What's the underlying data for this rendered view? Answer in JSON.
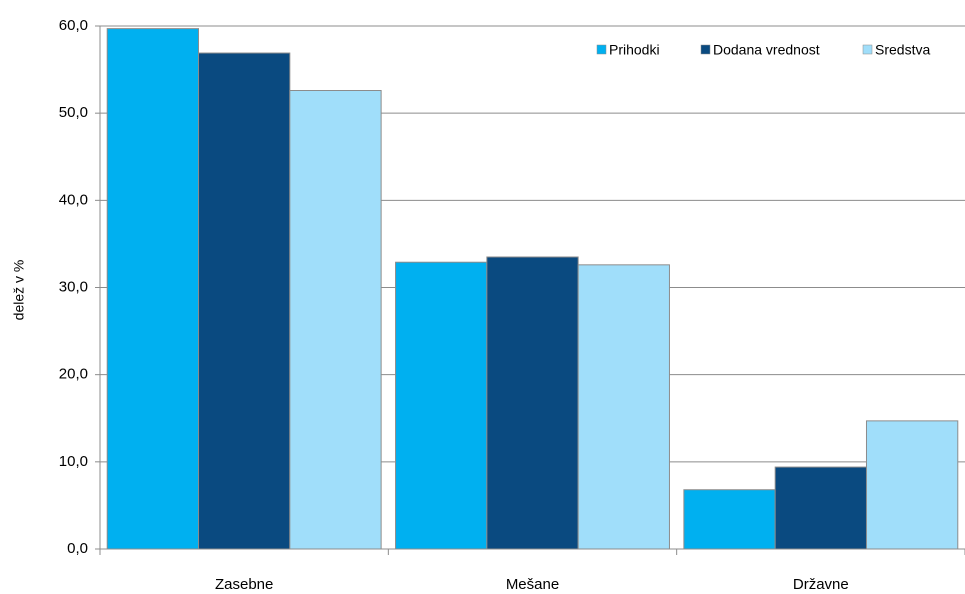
{
  "chart_data": {
    "type": "bar",
    "ylabel": "delež v %",
    "categories": [
      "Zasebne",
      "Mešane",
      "Državne"
    ],
    "series": [
      {
        "name": "Prihodki",
        "color": "#00b0f0",
        "values": [
          59.7,
          32.9,
          6.8
        ]
      },
      {
        "name": "Dodana vrednost",
        "color": "#0a4a80",
        "values": [
          56.9,
          33.5,
          9.4
        ]
      },
      {
        "name": "Sredstva",
        "color": "#a0defa",
        "values": [
          52.6,
          32.6,
          14.7
        ]
      }
    ],
    "ylim": [
      0,
      60
    ],
    "yticks": [
      {
        "value": 0,
        "label": "0,0"
      },
      {
        "value": 10,
        "label": "10,0"
      },
      {
        "value": 20,
        "label": "20,0"
      },
      {
        "value": 30,
        "label": "30,0"
      },
      {
        "value": 40,
        "label": "40,0"
      },
      {
        "value": 50,
        "label": "50,0"
      },
      {
        "value": 60,
        "label": "60,0"
      }
    ],
    "grid": true,
    "legend": "top-right"
  }
}
